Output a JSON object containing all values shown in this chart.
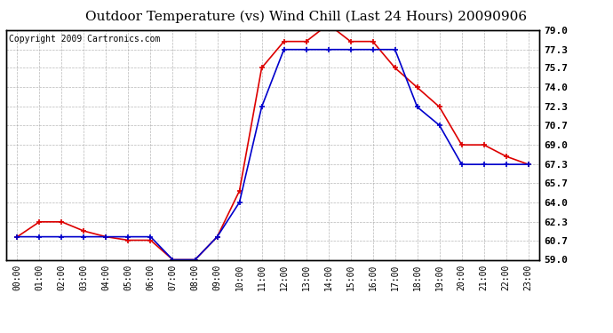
{
  "title": "Outdoor Temperature (vs) Wind Chill (Last 24 Hours) 20090906",
  "copyright": "Copyright 2009 Cartronics.com",
  "hours": [
    "00:00",
    "01:00",
    "02:00",
    "03:00",
    "04:00",
    "05:00",
    "06:00",
    "07:00",
    "08:00",
    "09:00",
    "10:00",
    "11:00",
    "12:00",
    "13:00",
    "14:00",
    "15:00",
    "16:00",
    "17:00",
    "18:00",
    "19:00",
    "20:00",
    "21:00",
    "22:00",
    "23:00"
  ],
  "temp": [
    61.0,
    62.3,
    62.3,
    61.5,
    61.0,
    60.7,
    60.7,
    59.0,
    59.0,
    61.0,
    65.0,
    75.7,
    78.0,
    78.0,
    79.5,
    78.0,
    78.0,
    75.7,
    74.0,
    72.3,
    69.0,
    69.0,
    68.0,
    67.3
  ],
  "windchill": [
    61.0,
    61.0,
    61.0,
    61.0,
    61.0,
    61.0,
    61.0,
    59.0,
    59.0,
    61.0,
    64.0,
    72.3,
    77.3,
    77.3,
    77.3,
    77.3,
    77.3,
    77.3,
    72.3,
    70.7,
    67.3,
    67.3,
    67.3,
    67.3
  ],
  "temp_color": "#dd0000",
  "windchill_color": "#0000cc",
  "bg_color": "#ffffff",
  "grid_color": "#999999",
  "ylim": [
    59.0,
    79.0
  ],
  "yticks": [
    59.0,
    60.7,
    62.3,
    64.0,
    65.7,
    67.3,
    69.0,
    70.7,
    72.3,
    74.0,
    75.7,
    77.3,
    79.0
  ],
  "title_fontsize": 11,
  "copyright_fontsize": 7,
  "marker": "+",
  "markersize": 5,
  "linewidth": 1.2
}
